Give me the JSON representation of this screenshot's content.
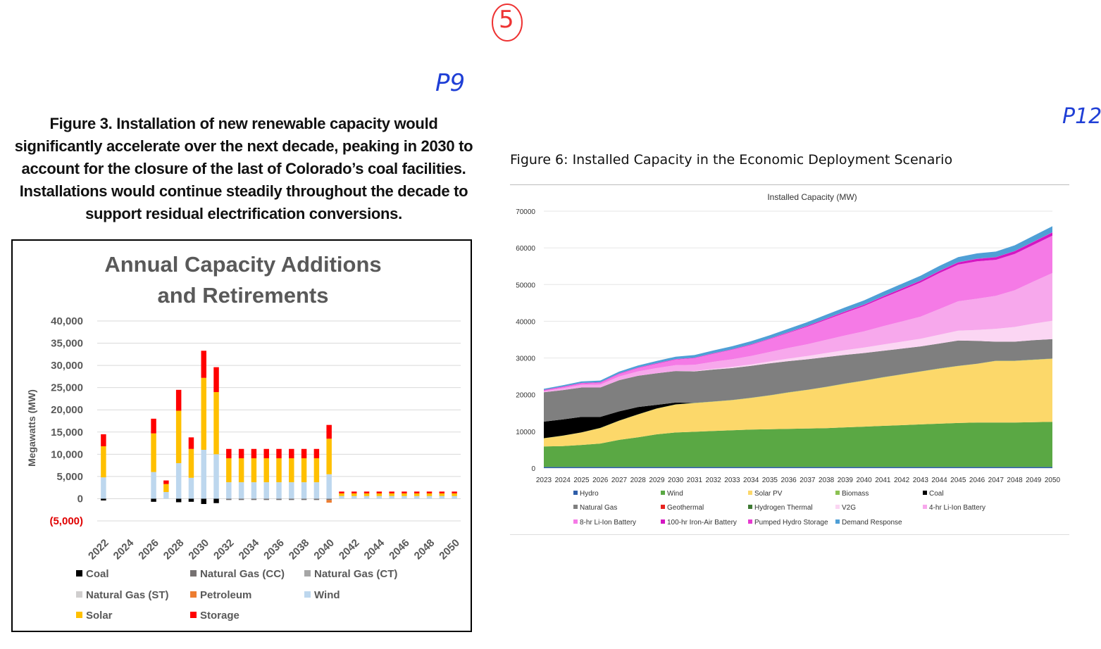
{
  "annotations": {
    "circled_number": "5",
    "page_left": "P9",
    "page_right": "P12"
  },
  "figure3": {
    "caption": "Figure 3. Installation of new renewable capacity would significantly accelerate over the next decade, peaking in 2030 to account for the closure of the last of Colorado’s coal facilities. Installations would continue steadily throughout the decade to support residual electrification conversions."
  },
  "figure6": {
    "caption": "Figure 6: Installed Capacity in the Economic Deployment Scenario"
  },
  "chart_data": [
    {
      "type": "bar",
      "stacked": true,
      "title_line1": "Annual Capacity Additions",
      "title_line2": "and Retirements",
      "ylabel": "Megawatts (MW)",
      "ylim": [
        -5000,
        40000
      ],
      "yticks": [
        40000,
        35000,
        30000,
        25000,
        20000,
        15000,
        10000,
        5000,
        0,
        -5000
      ],
      "ytick_labels": [
        "40,000",
        "35,000",
        "30,000",
        "25,000",
        "20,000",
        "15,000",
        "10,000",
        "5,000",
        "0",
        "(5,000)"
      ],
      "categories": [
        "2022",
        "2023",
        "2024",
        "2025",
        "2026",
        "2027",
        "2028",
        "2029",
        "2030",
        "2031",
        "2032",
        "2033",
        "2034",
        "2035",
        "2036",
        "2037",
        "2038",
        "2039",
        "2040",
        "2041",
        "2042",
        "2043",
        "2044",
        "2045",
        "2046",
        "2047",
        "2048",
        "2049",
        "2050"
      ],
      "xtick_labels": [
        "2022",
        "2024",
        "2026",
        "2028",
        "2030",
        "2032",
        "2034",
        "2036",
        "2038",
        "2040",
        "2042",
        "2044",
        "2046",
        "2048",
        "2050"
      ],
      "grid": true,
      "legend_position": "bottom",
      "series": [
        {
          "name": "Coal",
          "color": "#000000",
          "values": [
            -400,
            0,
            0,
            0,
            -700,
            0,
            -800,
            -700,
            -1200,
            -1000,
            0,
            0,
            0,
            0,
            0,
            0,
            0,
            0,
            0,
            0,
            0,
            0,
            0,
            0,
            0,
            0,
            0,
            0,
            0
          ]
        },
        {
          "name": "Natural Gas (CC)",
          "color": "#767171",
          "values": [
            0,
            0,
            0,
            0,
            0,
            0,
            0,
            0,
            0,
            0,
            -300,
            -300,
            -300,
            -300,
            -300,
            -300,
            -300,
            -300,
            -300,
            0,
            0,
            0,
            0,
            0,
            0,
            0,
            0,
            0,
            0
          ]
        },
        {
          "name": "Natural Gas (CT)",
          "color": "#a6a6a6",
          "values": [
            0,
            0,
            0,
            0,
            0,
            0,
            0,
            0,
            0,
            0,
            0,
            0,
            0,
            0,
            0,
            0,
            0,
            0,
            0,
            0,
            0,
            0,
            0,
            0,
            0,
            0,
            0,
            0,
            0
          ]
        },
        {
          "name": "Natural Gas (ST)",
          "color": "#d0cece",
          "values": [
            0,
            0,
            0,
            0,
            0,
            0,
            0,
            0,
            0,
            0,
            0,
            0,
            0,
            0,
            0,
            0,
            0,
            0,
            0,
            0,
            0,
            0,
            0,
            0,
            0,
            0,
            0,
            0,
            0
          ]
        },
        {
          "name": "Petroleum",
          "color": "#ed7d31",
          "values": [
            0,
            0,
            0,
            0,
            0,
            0,
            0,
            0,
            0,
            0,
            0,
            0,
            0,
            0,
            0,
            0,
            0,
            0,
            -600,
            0,
            0,
            0,
            0,
            0,
            0,
            0,
            0,
            0,
            0
          ]
        },
        {
          "name": "Wind",
          "color": "#bdd7ee",
          "values": [
            4800,
            0,
            0,
            0,
            6000,
            1500,
            8000,
            4700,
            11000,
            10000,
            3700,
            3700,
            3700,
            3700,
            3700,
            3700,
            3700,
            3700,
            5500,
            600,
            600,
            600,
            600,
            600,
            600,
            600,
            600,
            600,
            600
          ]
        },
        {
          "name": "Solar",
          "color": "#ffc000",
          "values": [
            7000,
            0,
            0,
            0,
            8700,
            1800,
            11800,
            6500,
            16200,
            14000,
            5400,
            5400,
            5400,
            5400,
            5400,
            5400,
            5400,
            5400,
            8000,
            600,
            600,
            600,
            600,
            600,
            600,
            600,
            600,
            600,
            600
          ]
        },
        {
          "name": "Storage",
          "color": "#ff0000",
          "values": [
            2700,
            0,
            0,
            0,
            3300,
            800,
            4700,
            2600,
            6100,
            5600,
            2100,
            2100,
            2100,
            2100,
            2100,
            2100,
            2100,
            2100,
            3100,
            400,
            400,
            400,
            400,
            400,
            400,
            400,
            400,
            400,
            400
          ]
        }
      ]
    },
    {
      "type": "area",
      "stacked": true,
      "title": "Installed Capacity (MW)",
      "ylim": [
        0,
        70000
      ],
      "yticks": [
        0,
        10000,
        20000,
        30000,
        40000,
        50000,
        60000,
        70000
      ],
      "x": [
        "2023",
        "2024",
        "2025",
        "2026",
        "2027",
        "2028",
        "2029",
        "2030",
        "2031",
        "2032",
        "2033",
        "2034",
        "2035",
        "2036",
        "2037",
        "2038",
        "2039",
        "2040",
        "2041",
        "2042",
        "2043",
        "2044",
        "2045",
        "2046",
        "2047",
        "2048",
        "2049",
        "2050"
      ],
      "grid": true,
      "legend_position": "bottom",
      "series": [
        {
          "name": "Hydro",
          "color": "#2e5da8",
          "values": [
            300,
            300,
            300,
            300,
            300,
            300,
            300,
            300,
            300,
            300,
            300,
            300,
            300,
            300,
            300,
            300,
            300,
            300,
            300,
            300,
            300,
            300,
            300,
            300,
            300,
            300,
            300,
            300
          ]
        },
        {
          "name": "Wind",
          "color": "#5aa844",
          "values": [
            5600,
            5700,
            6000,
            6400,
            7400,
            8100,
            8900,
            9400,
            9600,
            9800,
            10000,
            10200,
            10300,
            10400,
            10500,
            10600,
            10800,
            11000,
            11200,
            11400,
            11600,
            11800,
            12000,
            12100,
            12100,
            12100,
            12200,
            12300
          ]
        },
        {
          "name": "Solar PV",
          "color": "#fcd86a",
          "values": [
            2200,
            2800,
            3400,
            4200,
            5200,
            6200,
            7000,
            7600,
            7800,
            8000,
            8200,
            8600,
            9200,
            9900,
            10500,
            11200,
            11900,
            12500,
            13200,
            13800,
            14400,
            15000,
            15500,
            16000,
            16800,
            16800,
            17000,
            17200
          ]
        },
        {
          "name": "Biomass",
          "color": "#8cc152",
          "values": [
            50,
            50,
            50,
            50,
            50,
            50,
            50,
            50,
            50,
            50,
            50,
            50,
            50,
            50,
            50,
            50,
            50,
            50,
            50,
            50,
            50,
            50,
            50,
            50,
            50,
            50,
            50,
            50
          ]
        },
        {
          "name": "Coal",
          "color": "#000000",
          "values": [
            4500,
            4400,
            4200,
            3000,
            2500,
            2000,
            1000,
            500,
            0,
            0,
            0,
            0,
            0,
            0,
            0,
            0,
            0,
            0,
            0,
            0,
            0,
            0,
            0,
            0,
            0,
            0,
            0,
            0
          ]
        },
        {
          "name": "Natural Gas",
          "color": "#7f7f7f",
          "values": [
            8000,
            8000,
            8000,
            8000,
            8500,
            8500,
            8600,
            8600,
            8600,
            8700,
            8700,
            8700,
            8700,
            8500,
            8300,
            8100,
            7800,
            7500,
            7200,
            7000,
            6800,
            6800,
            6900,
            6200,
            5200,
            5200,
            5300,
            5300
          ]
        },
        {
          "name": "Geothermal",
          "color": "#e8231f",
          "values": [
            0,
            0,
            0,
            0,
            0,
            0,
            0,
            0,
            0,
            0,
            0,
            0,
            0,
            0,
            0,
            0,
            0,
            0,
            0,
            0,
            0,
            0,
            0,
            0,
            0,
            0,
            0,
            0
          ]
        },
        {
          "name": "Hydrogen Thermal",
          "color": "#3f7a34",
          "values": [
            0,
            0,
            0,
            0,
            0,
            0,
            0,
            0,
            0,
            0,
            0,
            0,
            0,
            0,
            0,
            0,
            0,
            0,
            0,
            0,
            0,
            0,
            0,
            0,
            0,
            0,
            0,
            0
          ]
        },
        {
          "name": "V2G",
          "color": "#fbd6f3",
          "values": [
            0,
            0,
            0,
            0,
            0,
            0,
            0,
            0,
            100,
            200,
            300,
            400,
            500,
            700,
            900,
            1100,
            1300,
            1500,
            1700,
            1900,
            2100,
            2400,
            2700,
            3000,
            3500,
            4000,
            4500,
            5000
          ]
        },
        {
          "name": "4-hr Li-Ion Battery",
          "color": "#f7a8ec",
          "values": [
            300,
            500,
            700,
            800,
            1000,
            1200,
            1400,
            1600,
            1700,
            1900,
            2100,
            2300,
            2600,
            2900,
            3200,
            3600,
            4000,
            4400,
            5000,
            5500,
            6000,
            7000,
            8000,
            8500,
            9000,
            10000,
            11500,
            13000
          ]
        },
        {
          "name": "8-hr Li-Ion Battery",
          "color": "#f57ae6",
          "values": [
            200,
            300,
            400,
            500,
            700,
            900,
            1200,
            1500,
            1800,
            2200,
            2600,
            3000,
            3500,
            4100,
            4800,
            5500,
            6200,
            6900,
            7700,
            8500,
            9300,
            9800,
            10000,
            10200,
            9800,
            9900,
            10000,
            10200
          ]
        },
        {
          "name": "100-hr Iron-Air Battery",
          "color": "#d416c2",
          "values": [
            100,
            100,
            100,
            100,
            100,
            100,
            100,
            100,
            100,
            100,
            100,
            100,
            100,
            150,
            200,
            250,
            300,
            350,
            400,
            450,
            500,
            550,
            600,
            650,
            700,
            750,
            800,
            850
          ]
        },
        {
          "name": "Pumped Hydro Storage",
          "color": "#e63ad0",
          "values": [
            50,
            50,
            50,
            50,
            50,
            50,
            50,
            50,
            50,
            50,
            50,
            50,
            50,
            50,
            50,
            50,
            50,
            50,
            50,
            50,
            50,
            50,
            50,
            50,
            50,
            50,
            50,
            50
          ]
        },
        {
          "name": "Demand Response",
          "color": "#4f9fd6",
          "values": [
            300,
            350,
            400,
            450,
            500,
            550,
            600,
            650,
            700,
            750,
            800,
            850,
            900,
            950,
            1000,
            1050,
            1100,
            1150,
            1200,
            1250,
            1300,
            1350,
            1400,
            1450,
            1500,
            1550,
            1600,
            1650
          ]
        }
      ]
    }
  ]
}
